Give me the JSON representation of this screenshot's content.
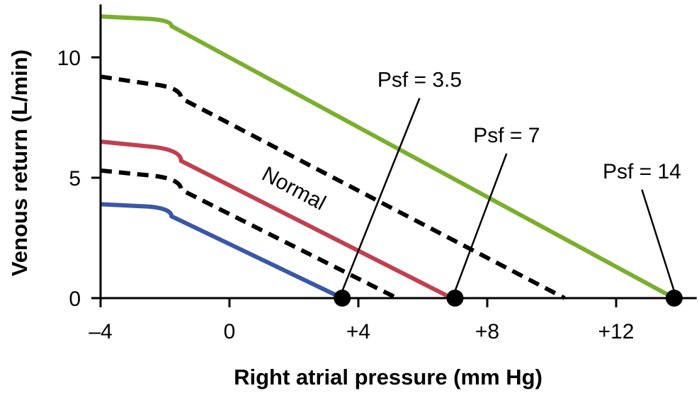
{
  "chart_data": {
    "type": "line",
    "xlabel": "Right atrial pressure (mm Hg)",
    "ylabel": "Venous return (L/min)",
    "xlim": [
      -4,
      14.5
    ],
    "ylim": [
      0,
      12.2
    ],
    "x_ticks": [
      {
        "value": -4,
        "label": "–4"
      },
      {
        "value": 0,
        "label": "0"
      },
      {
        "value": 4,
        "label": "+4"
      },
      {
        "value": 8,
        "label": "+8"
      },
      {
        "value": 12,
        "label": "+12"
      }
    ],
    "y_ticks": [
      {
        "value": 0,
        "label": "0"
      },
      {
        "value": 5,
        "label": "5"
      },
      {
        "value": 10,
        "label": "10"
      }
    ],
    "colors": {
      "green": "#7aaf2d",
      "red": "#c0404f",
      "blue": "#3a57a7",
      "dashed": "#000000"
    },
    "series": [
      {
        "color": "#7aaf2d",
        "style": "solid",
        "points": [
          [
            -4,
            11.7
          ],
          [
            -2.5,
            11.6
          ],
          [
            -1.8,
            11.3
          ],
          [
            13.8,
            0
          ]
        ]
      },
      {
        "color": "#000000",
        "style": "dashed",
        "points": [
          [
            -4,
            9.2
          ],
          [
            -2.5,
            8.9
          ],
          [
            -1.5,
            8.3
          ],
          [
            10.4,
            0
          ]
        ]
      },
      {
        "color": "#c0404f",
        "style": "solid",
        "points": [
          [
            -4,
            6.5
          ],
          [
            -2.5,
            6.3
          ],
          [
            -1.5,
            5.7
          ],
          [
            6.9,
            0
          ]
        ]
      },
      {
        "color": "#000000",
        "style": "dashed",
        "points": [
          [
            -4,
            5.3
          ],
          [
            -2.5,
            5.1
          ],
          [
            -1.5,
            4.5
          ],
          [
            5.2,
            0
          ]
        ]
      },
      {
        "color": "#3a57a7",
        "style": "solid",
        "points": [
          [
            -4,
            3.9
          ],
          [
            -2.5,
            3.8
          ],
          [
            -1.8,
            3.4
          ],
          [
            3.5,
            0
          ]
        ]
      }
    ],
    "endpoints": [
      3.5,
      7,
      13.8
    ],
    "annotations": [
      {
        "text": "Psf = 3.5",
        "target_x": 3.5,
        "label_anchor": [
          5.9,
          8.6
        ]
      },
      {
        "text": "Psf = 7",
        "target_x": 7,
        "label_anchor": [
          8.6,
          6.3
        ]
      },
      {
        "text": "Psf = 14",
        "target_x": 13.8,
        "label_anchor": [
          12.8,
          4.8
        ]
      }
    ],
    "inline_label": {
      "text": "Normal",
      "at": [
        1.9,
        4.3
      ],
      "angle_deg": 28
    },
    "grid": false,
    "legend": "none"
  }
}
